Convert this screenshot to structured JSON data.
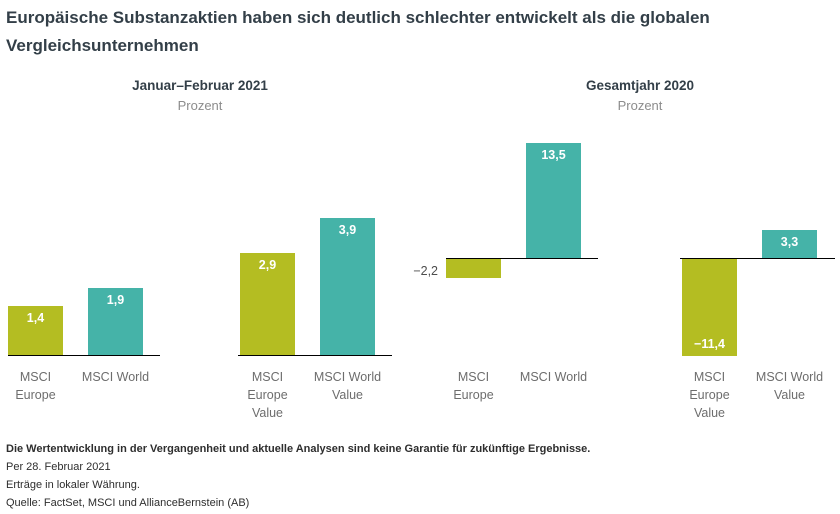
{
  "title": "Europäische Substanzaktien haben sich deutlich schlechter entwickelt als die globalen Vergleichsunternehmen",
  "colors": {
    "lime": "#b4bd22",
    "teal": "#45b3a8",
    "title": "#333f48",
    "axis": "#000000",
    "category_label": "#6d6d6d",
    "subheader": "#8c8c8c"
  },
  "panels": [
    {
      "header": "Januar–Februar 2021",
      "subheader": "Prozent"
    },
    {
      "header": "Gesamtjahr 2020",
      "subheader": "Prozent"
    }
  ],
  "chart_data": [
    {
      "type": "bar",
      "title": "Januar–Februar 2021",
      "ylabel": "Prozent",
      "categories": [
        "MSCI Europe",
        "MSCI World",
        "MSCI Europe Value",
        "MSCI World Value"
      ],
      "category_lines": [
        [
          "MSCI",
          "Europe"
        ],
        [
          "MSCI World"
        ],
        [
          "MSCI",
          "Europe",
          "Value"
        ],
        [
          "MSCI World",
          "Value"
        ]
      ],
      "values": [
        1.4,
        1.9,
        2.9,
        3.9
      ],
      "value_labels": [
        "1,4",
        "1,9",
        "2,9",
        "3,9"
      ],
      "series_colors": [
        "lime",
        "teal",
        "lime",
        "teal"
      ],
      "label_placements": [
        "inside-top",
        "inside-top",
        "inside-top",
        "inside-top"
      ],
      "grid": "off",
      "legend": "none"
    },
    {
      "type": "bar",
      "title": "Gesamtjahr 2020",
      "ylabel": "Prozent",
      "categories": [
        "MSCI Europe",
        "MSCI World",
        "MSCI Europe Value",
        "MSCI World Value"
      ],
      "category_lines": [
        [
          "MSCI",
          "Europe"
        ],
        [
          "MSCI World"
        ],
        [
          "MSCI",
          "Europe",
          "Value"
        ],
        [
          "MSCI World",
          "Value"
        ]
      ],
      "values": [
        -2.2,
        13.5,
        -11.4,
        3.3
      ],
      "value_labels": [
        "−2,2",
        "13,5",
        "−11,4",
        "3,3"
      ],
      "series_colors": [
        "lime",
        "teal",
        "lime",
        "teal"
      ],
      "label_placements": [
        "outside-left",
        "inside-top",
        "inside-bottom",
        "inside-top"
      ],
      "grid": "off",
      "legend": "none"
    }
  ],
  "footnotes": {
    "disclaimer": "Die Wertentwicklung in der Vergangenheit und aktuelle Analysen sind keine Garantie für zukünftige Ergebnisse.",
    "as_of": "Per 28. Februar 2021",
    "currency_note": "Erträge in lokaler Währung.",
    "source": "Quelle: FactSet, MSCI und AllianceBernstein (AB)"
  }
}
